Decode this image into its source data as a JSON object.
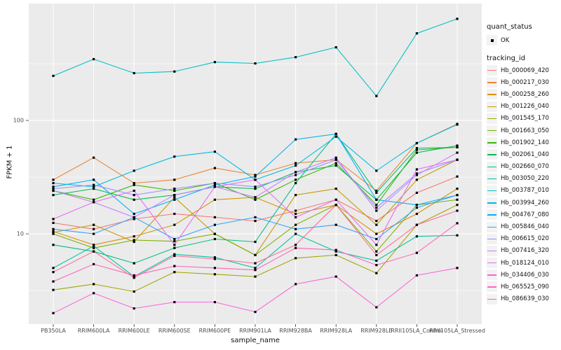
{
  "chart_data": {
    "type": "line",
    "title": "",
    "xlabel": "sample_name",
    "ylabel": "FPKM + 1",
    "yscale": "log10",
    "ylim": [
      1.6,
      1074
    ],
    "yticks": [
      10,
      100
    ],
    "minor_ticks": [
      3.162,
      31.62,
      316.2
    ],
    "grid": "white major+minor on gray panel",
    "legend_position": "right",
    "point_shape": "small black square (quant_status OK)",
    "categories": [
      "PB350LA",
      "RRIM600LA",
      "RRIM600LE",
      "RRIM600SE",
      "RRIM600PE",
      "RRIM901LA",
      "RRIM928BA",
      "RRIM928LA",
      "RRIM928LE",
      "RRII105LA_Control",
      "RRII105LA_Stressed"
    ],
    "series": [
      {
        "name": "Hb_000069_420",
        "color": "#F8766D",
        "values": [
          12.5,
          11,
          13.5,
          15,
          14,
          13,
          16,
          20,
          13,
          23,
          32
        ]
      },
      {
        "name": "Hb_000217_030",
        "color": "#EA8331",
        "values": [
          30,
          47,
          28,
          30,
          38,
          33,
          42,
          45,
          24,
          63,
          93
        ]
      },
      {
        "name": "Hb_000258_260",
        "color": "#D89000",
        "values": [
          10.5,
          8,
          9.5,
          12,
          20,
          21,
          15,
          18,
          10,
          15,
          25
        ]
      },
      {
        "name": "Hb_001226_040",
        "color": "#C09B00",
        "values": [
          10.3,
          12,
          8.5,
          21,
          10,
          6.5,
          22,
          25,
          12,
          30,
          45
        ]
      },
      {
        "name": "Hb_001545_170",
        "color": "#A3A500",
        "values": [
          3.2,
          3.6,
          3.1,
          4.6,
          4.4,
          4.2,
          6.1,
          6.5,
          4.5,
          12,
          18
        ]
      },
      {
        "name": "Hb_001663_050",
        "color": "#7CAE00",
        "values": [
          10,
          7.5,
          8.8,
          8.6,
          10,
          6.5,
          12,
          18,
          7,
          18,
          20
        ]
      },
      {
        "name": "Hb_001902_140",
        "color": "#39B600",
        "values": [
          24,
          20,
          27,
          24,
          28,
          20,
          30,
          42,
          18,
          55,
          58
        ]
      },
      {
        "name": "Hb_002061_040",
        "color": "#00BB4E",
        "values": [
          22,
          25,
          20,
          22,
          26,
          25,
          35,
          40,
          20,
          52,
          60
        ]
      },
      {
        "name": "Hb_002660_070",
        "color": "#00BF7D",
        "values": [
          8,
          7,
          5.5,
          7.5,
          9,
          8.5,
          28,
          76,
          23,
          57,
          58
        ]
      },
      {
        "name": "Hb_003050_220",
        "color": "#00C1A3",
        "values": [
          5,
          7.8,
          4.2,
          6.6,
          6.2,
          5,
          10,
          7,
          5.8,
          9.5,
          9.7
        ]
      },
      {
        "name": "Hb_003787_010",
        "color": "#00BFC4",
        "values": [
          247,
          347,
          261,
          270,
          327,
          318,
          361,
          441,
          164,
          585,
          787
        ]
      },
      {
        "name": "Hb_003994_260",
        "color": "#00BAE0",
        "values": [
          28,
          26,
          36,
          48,
          53,
          30,
          40,
          72,
          36,
          63,
          92
        ]
      },
      {
        "name": "Hb_004767_080",
        "color": "#00B0F6",
        "values": [
          26,
          30,
          15,
          20,
          27,
          32,
          68,
          76,
          20,
          18,
          22
        ]
      },
      {
        "name": "Hb_005846_040",
        "color": "#35A2FF",
        "values": [
          11,
          10,
          14,
          9,
          12,
          14,
          11,
          12,
          9,
          17,
          22
        ]
      },
      {
        "name": "Hb_006615_020",
        "color": "#9590FF",
        "values": [
          25,
          27,
          22,
          25,
          28,
          26,
          33,
          45,
          17,
          34,
          45
        ]
      },
      {
        "name": "Hb_007416_320",
        "color": "#C77CFF",
        "values": [
          24,
          19,
          14,
          22,
          26,
          21,
          35,
          47,
          16,
          33,
          52
        ]
      },
      {
        "name": "Hb_018124_010",
        "color": "#E76BF3",
        "values": [
          13.5,
          19,
          24,
          8,
          26,
          30,
          14,
          20,
          8,
          37,
          45
        ]
      },
      {
        "name": "Hb_034406_030",
        "color": "#FA62DB",
        "values": [
          2.0,
          3.0,
          2.2,
          2.5,
          2.5,
          2.05,
          3.6,
          4.2,
          2.25,
          4.3,
          5.0
        ]
      },
      {
        "name": "Hb_065525_090",
        "color": "#FF62BC",
        "values": [
          3.8,
          5.4,
          4.3,
          5.2,
          5.0,
          4.8,
          7.5,
          7.2,
          5.3,
          6.8,
          12.4
        ]
      },
      {
        "name": "Hb_086639_030",
        "color": "#FF6A98",
        "values": [
          4.6,
          7.0,
          4.1,
          6.4,
          6.0,
          5.5,
          8.0,
          18,
          6.5,
          12,
          16
        ]
      }
    ]
  },
  "legend": {
    "quant_title": "quant_status",
    "quant_items": [
      "OK"
    ],
    "tracking_title": "tracking_id"
  },
  "colors": {
    "panel_bg": "#EBEBEB",
    "grid": "#FFFFFF",
    "legend_key_bg": "#F2F2F2",
    "tick_text": "#4D4D4D",
    "point": "#000000"
  }
}
